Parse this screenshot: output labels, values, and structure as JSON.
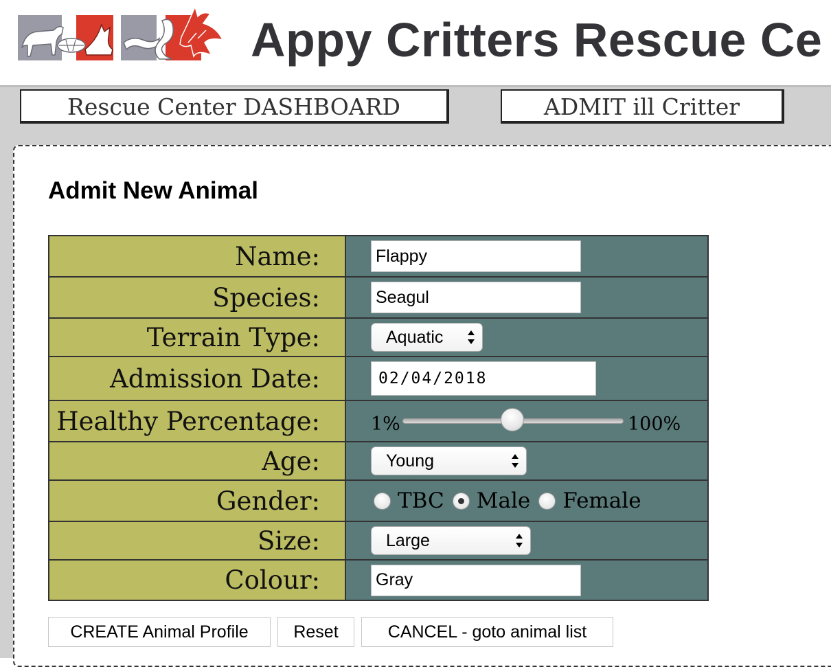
{
  "site": {
    "title": "Appy Critters Rescue Ce"
  },
  "nav": {
    "dashboard_label": "Rescue Center DASHBOARD",
    "admit_label": "ADMIT ill Critter"
  },
  "form": {
    "heading": "Admit New Animal",
    "fields": {
      "name": {
        "label": "Name:",
        "value": "Flappy"
      },
      "species": {
        "label": "Species:",
        "value": "Seagul"
      },
      "terrain": {
        "label": "Terrain Type:",
        "value": "Aquatic"
      },
      "admission_date": {
        "label": "Admission Date:",
        "value": "02/04/2018"
      },
      "health": {
        "label": "Healthy Percentage:",
        "min_label": "1%",
        "max_label": "100%",
        "min": 1,
        "max": 100,
        "value": 50
      },
      "age": {
        "label": "Age:",
        "value": "Young"
      },
      "gender": {
        "label": "Gender:",
        "options": [
          "TBC",
          "Male",
          "Female"
        ],
        "selected": "Male"
      },
      "size": {
        "label": "Size:",
        "value": "Large"
      },
      "colour": {
        "label": "Colour:",
        "value": "Gray"
      }
    }
  },
  "buttons": {
    "create": "CREATE Animal Profile",
    "reset": "Reset",
    "cancel": "CANCEL - goto animal list"
  },
  "colors": {
    "label_bg": "#bcbc63",
    "field_bg": "#5b7b7b",
    "logo_red": "#d93a2b",
    "logo_gray": "#9a9aa6",
    "title_text": "#333338"
  },
  "icons": {
    "logo": "rescue-center-logo",
    "select_arrows": "up-down-arrows-icon"
  }
}
